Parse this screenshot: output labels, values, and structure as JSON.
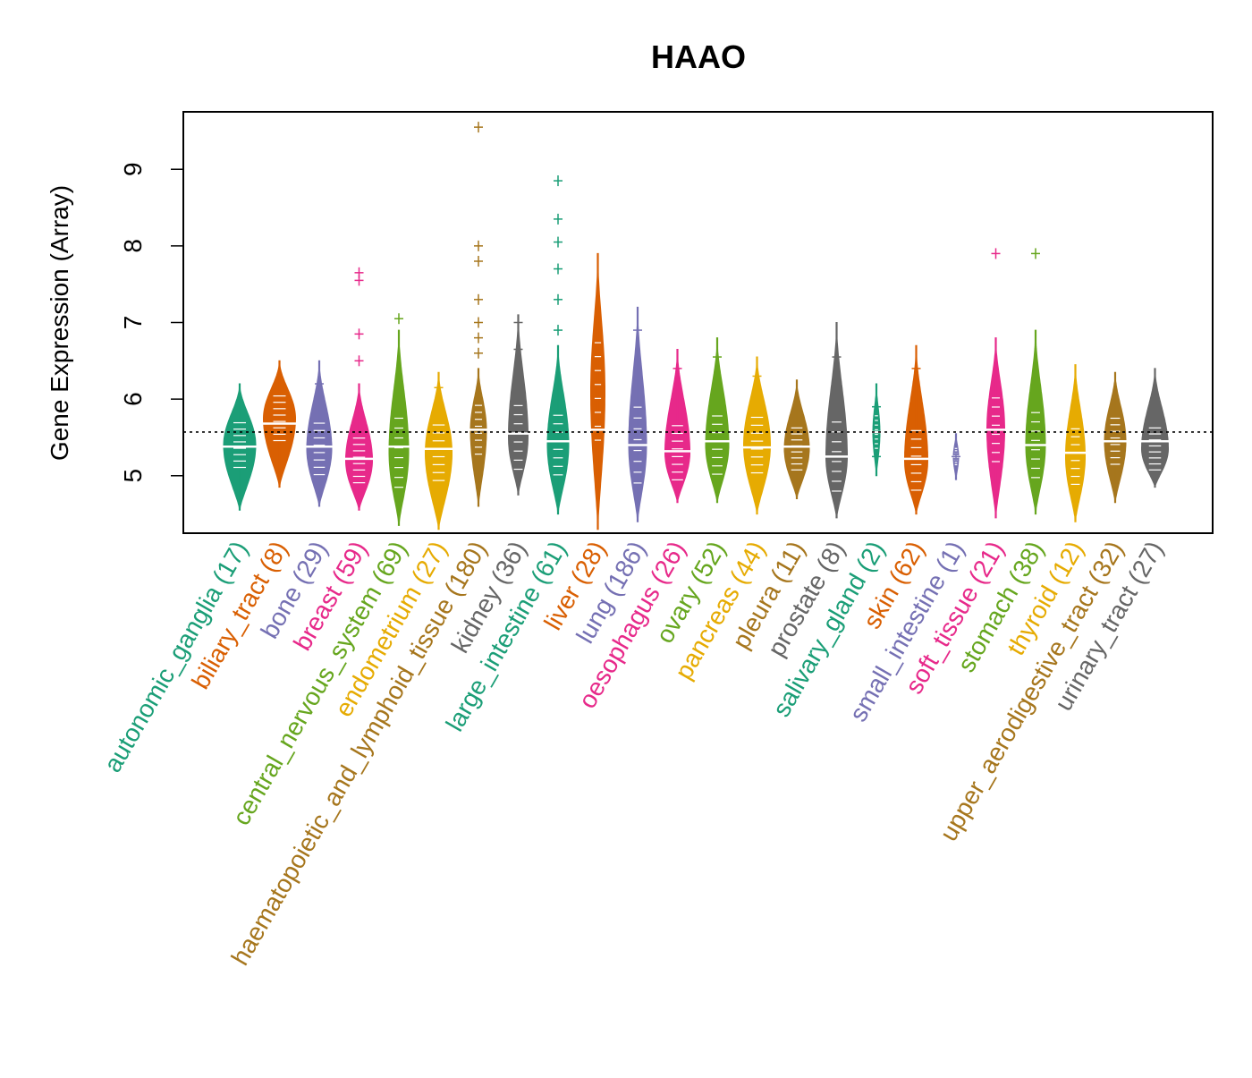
{
  "chart_data": {
    "type": "violin",
    "title": "HAAO",
    "xlabel": "",
    "ylabel": "Gene Expression (Array)",
    "ylim": [
      4.25,
      9.75
    ],
    "yticks": [
      5,
      6,
      7,
      8,
      9
    ],
    "reference_line": 5.57,
    "grid": false,
    "legend": "none",
    "categories": [
      {
        "label": "autonomic_ganglia (17)",
        "color": "#1b9e77",
        "min": 4.55,
        "max": 6.2,
        "median": 5.38,
        "mode": 5.4,
        "halfwidth": 18,
        "outliers": [
          4.75
        ]
      },
      {
        "label": "biliary_tract (8)",
        "color": "#d95f02",
        "min": 4.85,
        "max": 6.5,
        "median": 5.68,
        "mode": 5.75,
        "halfwidth": 18,
        "outliers": []
      },
      {
        "label": "bone (29)",
        "color": "#7570b3",
        "min": 4.6,
        "max": 6.5,
        "median": 5.38,
        "mode": 5.35,
        "halfwidth": 14,
        "outliers": [
          6.2
        ]
      },
      {
        "label": "breast (59)",
        "color": "#e7298a",
        "min": 4.55,
        "max": 6.2,
        "median": 5.22,
        "mode": 5.2,
        "halfwidth": 15,
        "outliers": [
          6.5,
          6.85,
          7.55,
          7.65
        ]
      },
      {
        "label": "central_nervous_system (69)",
        "color": "#66a61e",
        "min": 4.35,
        "max": 6.9,
        "median": 5.38,
        "mode": 5.3,
        "halfwidth": 11,
        "outliers": [
          7.05
        ]
      },
      {
        "label": "endometrium (27)",
        "color": "#e6ab02",
        "min": 4.3,
        "max": 6.35,
        "median": 5.35,
        "mode": 5.3,
        "halfwidth": 15,
        "outliers": [
          6.15
        ]
      },
      {
        "label": "haematopoietic_and_lymphoid_tissue (180)",
        "color": "#a6761d",
        "min": 4.6,
        "max": 6.4,
        "median": 5.6,
        "mode": 5.6,
        "halfwidth": 9,
        "outliers": [
          6.6,
          6.8,
          7.0,
          7.3,
          7.8,
          8.0,
          9.55
        ]
      },
      {
        "label": "kidney (36)",
        "color": "#666666",
        "min": 4.75,
        "max": 7.1,
        "median": 5.55,
        "mode": 5.5,
        "halfwidth": 11,
        "outliers": [
          6.65,
          7.0
        ]
      },
      {
        "label": "large_intestine (61)",
        "color": "#1b9e77",
        "min": 4.5,
        "max": 6.7,
        "median": 5.45,
        "mode": 5.4,
        "halfwidth": 12,
        "outliers": [
          6.9,
          7.3,
          7.7,
          8.05,
          8.35,
          8.85
        ]
      },
      {
        "label": "liver (28)",
        "color": "#d95f02",
        "min": 4.3,
        "max": 7.9,
        "median": 5.6,
        "mode": 6.1,
        "halfwidth": 8,
        "outliers": []
      },
      {
        "label": "lung (186)",
        "color": "#7570b3",
        "min": 4.4,
        "max": 7.2,
        "median": 5.4,
        "mode": 5.4,
        "halfwidth": 10,
        "outliers": [
          6.9
        ]
      },
      {
        "label": "oesophagus (26)",
        "color": "#e7298a",
        "min": 4.65,
        "max": 6.65,
        "median": 5.32,
        "mode": 5.3,
        "halfwidth": 14,
        "outliers": [
          6.4
        ]
      },
      {
        "label": "ovary (52)",
        "color": "#66a61e",
        "min": 4.65,
        "max": 6.8,
        "median": 5.45,
        "mode": 5.4,
        "halfwidth": 13,
        "outliers": [
          6.55
        ]
      },
      {
        "label": "pancreas (44)",
        "color": "#e6ab02",
        "min": 4.5,
        "max": 6.55,
        "median": 5.37,
        "mode": 5.4,
        "halfwidth": 15,
        "outliers": [
          6.3
        ]
      },
      {
        "label": "pleura (11)",
        "color": "#a6761d",
        "min": 4.7,
        "max": 6.25,
        "median": 5.38,
        "mode": 5.35,
        "halfwidth": 14,
        "outliers": []
      },
      {
        "label": "prostate (8)",
        "color": "#666666",
        "min": 4.45,
        "max": 7.0,
        "median": 5.25,
        "mode": 5.25,
        "halfwidth": 12,
        "outliers": [
          6.55
        ]
      },
      {
        "label": "salivary_gland (2)",
        "color": "#1b9e77",
        "min": 5.0,
        "max": 6.2,
        "median": 5.57,
        "mode": 5.57,
        "halfwidth": 4,
        "outliers": [
          5.25,
          5.9
        ]
      },
      {
        "label": "skin (62)",
        "color": "#d95f02",
        "min": 4.5,
        "max": 6.7,
        "median": 5.22,
        "mode": 5.2,
        "halfwidth": 13,
        "outliers": [
          6.4
        ]
      },
      {
        "label": "small_intestine (1)",
        "color": "#7570b3",
        "min": 4.95,
        "max": 5.55,
        "median": 5.25,
        "mode": 5.25,
        "halfwidth": 3,
        "outliers": [
          5.25
        ]
      },
      {
        "label": "soft_tissue (21)",
        "color": "#e7298a",
        "min": 4.45,
        "max": 6.8,
        "median": 5.6,
        "mode": 5.6,
        "halfwidth": 10,
        "outliers": [
          7.9
        ]
      },
      {
        "label": "stomach (38)",
        "color": "#66a61e",
        "min": 4.5,
        "max": 6.9,
        "median": 5.4,
        "mode": 5.4,
        "halfwidth": 11,
        "outliers": [
          7.9
        ]
      },
      {
        "label": "thyroid (12)",
        "color": "#e6ab02",
        "min": 4.4,
        "max": 6.45,
        "median": 5.3,
        "mode": 5.25,
        "halfwidth": 11,
        "outliers": []
      },
      {
        "label": "upper_aerodigestive_tract (32)",
        "color": "#a6761d",
        "min": 4.65,
        "max": 6.35,
        "median": 5.45,
        "mode": 5.45,
        "halfwidth": 12,
        "outliers": []
      },
      {
        "label": "urinary_tract (27)",
        "color": "#666666",
        "min": 4.85,
        "max": 6.4,
        "median": 5.45,
        "mode": 5.35,
        "halfwidth": 15,
        "outliers": []
      }
    ]
  }
}
